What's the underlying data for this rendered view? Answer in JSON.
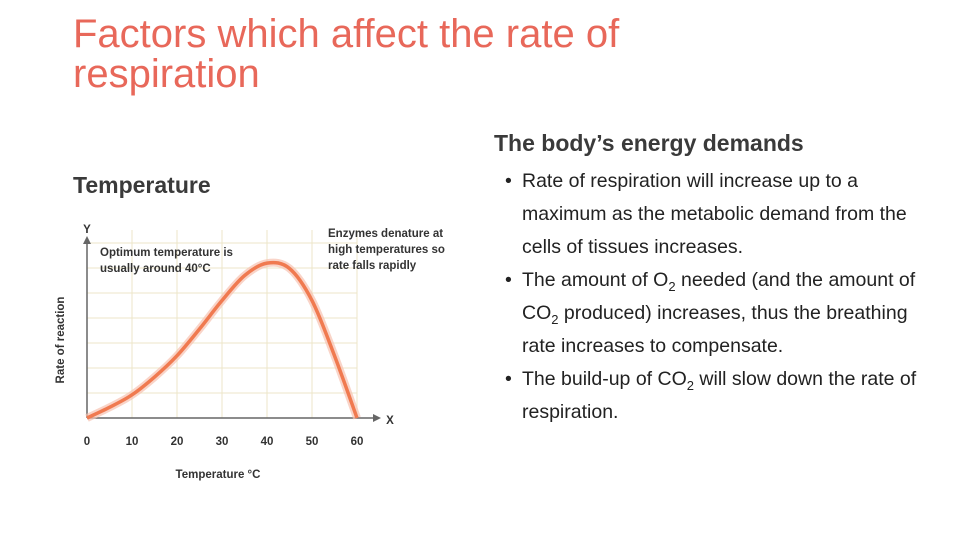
{
  "title": "Factors which affect the rate of respiration",
  "left_heading": "Temperature",
  "right_heading": "The body’s energy demands",
  "bullets": [
    [
      "Rate of respiration will increase up to a maximum as the metabolic demand from the cells of tissues increases."
    ],
    [
      "The amount of O",
      "2",
      " needed (and the amount of CO",
      "2",
      " produced) increases, thus the breathing rate increases to compensate."
    ],
    [
      "The build-up of CO",
      "2",
      " will slow down the rate of respiration."
    ]
  ],
  "bullet_symbol": "•",
  "chart_data": {
    "type": "line",
    "x_label": "Temperature °C",
    "y_label": "Rate of reaction",
    "x_axis_letter": "X",
    "y_axis_letter": "Y",
    "annotations": [
      [
        "Optimum temperature is",
        "usually around 40°C"
      ],
      [
        "Enzymes denature at",
        "high temperatures so",
        "rate falls rapidly"
      ]
    ],
    "x": [
      0,
      5,
      10,
      15,
      20,
      25,
      30,
      35,
      40,
      45,
      50,
      55,
      60
    ],
    "values": [
      0,
      6,
      13,
      23,
      35,
      50,
      66,
      80,
      87,
      84,
      66,
      35,
      0
    ],
    "color": "#f07a50",
    "xlim": [
      0,
      60
    ],
    "ylim": [
      0,
      100
    ],
    "xticks": [
      0,
      10,
      20,
      30,
      40,
      50,
      60
    ],
    "grid": true
  }
}
